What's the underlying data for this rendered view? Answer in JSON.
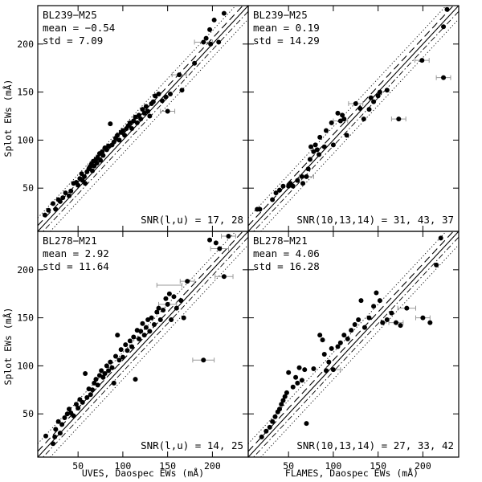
{
  "figure": {
    "xlabel_left": "UVES, Daospec EWs (mÅ)",
    "xlabel_right": "FLAMES, Daospec EWs (mÅ)",
    "ylabel": "Splot EWs (mÅ)"
  },
  "chart_data": [
    {
      "type": "scatter",
      "title": "BL239−M25",
      "mean_label": "mean = −0.54",
      "std_label": "std = 7.09",
      "snr_label": "SNR(l,u) = 17, 28",
      "xlim": [
        5,
        240
      ],
      "ylim": [
        5,
        240
      ],
      "xticks": [
        50,
        100,
        150,
        200
      ],
      "yticks": [
        50,
        100,
        150,
        200
      ],
      "points": [
        [
          13,
          22
        ],
        [
          17,
          27
        ],
        [
          22,
          34
        ],
        [
          25,
          28
        ],
        [
          28,
          38
        ],
        [
          30,
          36
        ],
        [
          33,
          40
        ],
        [
          36,
          45
        ],
        [
          40,
          42
        ],
        [
          42,
          47
        ],
        [
          45,
          55
        ],
        [
          48,
          56
        ],
        [
          50,
          53
        ],
        [
          52,
          60
        ],
        [
          54,
          65
        ],
        [
          55,
          58
        ],
        [
          57,
          62
        ],
        [
          58,
          55
        ],
        [
          60,
          67
        ],
        [
          62,
          70
        ],
        [
          63,
          72
        ],
        [
          65,
          75
        ],
        [
          66,
          68
        ],
        [
          67,
          78
        ],
        [
          68,
          73
        ],
        [
          70,
          80
        ],
        [
          71,
          76
        ],
        [
          72,
          82
        ],
        [
          74,
          86
        ],
        [
          75,
          79
        ],
        [
          77,
          88
        ],
        [
          78,
          84
        ],
        [
          80,
          92
        ],
        [
          82,
          90
        ],
        [
          84,
          94
        ],
        [
          86,
          117
        ],
        [
          88,
          95
        ],
        [
          90,
          98
        ],
        [
          92,
          102
        ],
        [
          94,
          105
        ],
        [
          96,
          100
        ],
        [
          98,
          108
        ],
        [
          100,
          110
        ],
        [
          102,
          105
        ],
        [
          104,
          112
        ],
        [
          106,
          115
        ],
        [
          108,
          118
        ],
        [
          110,
          112
        ],
        [
          112,
          120
        ],
        [
          114,
          124
        ],
        [
          116,
          118
        ],
        [
          118,
          126
        ],
        [
          120,
          122
        ],
        [
          122,
          132
        ],
        [
          124,
          128
        ],
        [
          126,
          135
        ],
        [
          128,
          130
        ],
        [
          130,
          125
        ],
        [
          132,
          138
        ],
        [
          134,
          140
        ],
        [
          136,
          146
        ],
        [
          140,
          148
        ],
        [
          144,
          141
        ],
        [
          148,
          145
        ],
        [
          150,
          130
        ],
        [
          153,
          148
        ],
        [
          163,
          168
        ],
        [
          166,
          152
        ],
        [
          180,
          180
        ],
        [
          190,
          202
        ],
        [
          193,
          206
        ],
        [
          197,
          215
        ],
        [
          198,
          200
        ],
        [
          202,
          225
        ],
        [
          207,
          202
        ],
        [
          213,
          232
        ]
      ],
      "errorbars": [
        [
          150,
          130,
          8
        ],
        [
          163,
          168,
          8
        ],
        [
          190,
          202,
          10
        ]
      ]
    },
    {
      "type": "scatter",
      "title": "BL239−M25",
      "mean_label": "mean = 0.19",
      "std_label": "std = 14.29",
      "snr_label": "SNR(10,13,14) = 31, 43, 37",
      "xlim": [
        5,
        240
      ],
      "ylim": [
        5,
        240
      ],
      "xticks": [
        50,
        100,
        150,
        200
      ],
      "yticks": [
        50,
        100,
        150,
        200
      ],
      "points": [
        [
          15,
          28
        ],
        [
          18,
          28
        ],
        [
          32,
          38
        ],
        [
          36,
          45
        ],
        [
          40,
          48
        ],
        [
          44,
          52
        ],
        [
          50,
          52
        ],
        [
          52,
          55
        ],
        [
          55,
          52
        ],
        [
          60,
          58
        ],
        [
          65,
          62
        ],
        [
          66,
          55
        ],
        [
          70,
          62
        ],
        [
          72,
          70
        ],
        [
          74,
          80
        ],
        [
          75,
          93
        ],
        [
          78,
          88
        ],
        [
          80,
          95
        ],
        [
          82,
          90
        ],
        [
          84,
          85
        ],
        [
          85,
          103
        ],
        [
          90,
          93
        ],
        [
          92,
          110
        ],
        [
          98,
          118
        ],
        [
          100,
          95
        ],
        [
          105,
          128
        ],
        [
          108,
          120
        ],
        [
          110,
          126
        ],
        [
          112,
          122
        ],
        [
          115,
          105
        ],
        [
          125,
          138
        ],
        [
          130,
          133
        ],
        [
          134,
          122
        ],
        [
          140,
          132
        ],
        [
          142,
          144
        ],
        [
          145,
          140
        ],
        [
          150,
          146
        ],
        [
          152,
          150
        ],
        [
          160,
          152
        ],
        [
          173,
          122
        ],
        [
          199,
          183
        ],
        [
          223,
          218
        ],
        [
          227,
          236
        ],
        [
          223,
          165
        ]
      ],
      "errorbars": [
        [
          70,
          62,
          8
        ],
        [
          108,
          120,
          8
        ],
        [
          125,
          138,
          8
        ],
        [
          173,
          122,
          8
        ],
        [
          199,
          183,
          8
        ],
        [
          223,
          165,
          8
        ]
      ]
    },
    {
      "type": "scatter",
      "title": "BL278−M21",
      "mean_label": "mean = 2.92",
      "std_label": "std = 11.64",
      "snr_label": "SNR(l,u) = 14, 25",
      "xlim": [
        5,
        240
      ],
      "ylim": [
        5,
        240
      ],
      "xticks": [
        50,
        100,
        150,
        200
      ],
      "yticks": [
        50,
        100,
        150,
        200
      ],
      "points": [
        [
          14,
          27
        ],
        [
          22,
          19
        ],
        [
          24,
          26
        ],
        [
          25,
          34
        ],
        [
          28,
          42
        ],
        [
          30,
          30
        ],
        [
          32,
          39
        ],
        [
          35,
          46
        ],
        [
          38,
          50
        ],
        [
          40,
          55
        ],
        [
          42,
          51
        ],
        [
          45,
          48
        ],
        [
          48,
          60
        ],
        [
          50,
          56
        ],
        [
          52,
          65
        ],
        [
          55,
          62
        ],
        [
          58,
          92
        ],
        [
          60,
          67
        ],
        [
          62,
          76
        ],
        [
          64,
          70
        ],
        [
          66,
          75
        ],
        [
          68,
          82
        ],
        [
          70,
          86
        ],
        [
          72,
          80
        ],
        [
          74,
          90
        ],
        [
          76,
          95
        ],
        [
          78,
          88
        ],
        [
          80,
          92
        ],
        [
          82,
          100
        ],
        [
          84,
          95
        ],
        [
          86,
          104
        ],
        [
          88,
          98
        ],
        [
          90,
          82
        ],
        [
          92,
          110
        ],
        [
          94,
          132
        ],
        [
          96,
          106
        ],
        [
          98,
          117
        ],
        [
          100,
          109
        ],
        [
          103,
          122
        ],
        [
          105,
          116
        ],
        [
          108,
          126
        ],
        [
          110,
          120
        ],
        [
          112,
          130
        ],
        [
          114,
          86
        ],
        [
          116,
          137
        ],
        [
          118,
          128
        ],
        [
          120,
          136
        ],
        [
          122,
          144
        ],
        [
          124,
          132
        ],
        [
          126,
          140
        ],
        [
          128,
          148
        ],
        [
          130,
          136
        ],
        [
          132,
          150
        ],
        [
          135,
          143
        ],
        [
          138,
          156
        ],
        [
          140,
          160
        ],
        [
          142,
          148
        ],
        [
          145,
          158
        ],
        [
          148,
          170
        ],
        [
          150,
          164
        ],
        [
          152,
          175
        ],
        [
          154,
          148
        ],
        [
          157,
          172
        ],
        [
          160,
          160
        ],
        [
          165,
          168
        ],
        [
          168,
          150
        ],
        [
          172,
          188
        ],
        [
          190,
          106
        ],
        [
          197,
          231
        ],
        [
          204,
          228
        ],
        [
          208,
          222
        ],
        [
          213,
          193
        ],
        [
          218,
          235
        ]
      ],
      "errorbars": [
        [
          152,
          184,
          14
        ],
        [
          150,
          164,
          10
        ],
        [
          190,
          106,
          12
        ],
        [
          208,
          222,
          10
        ],
        [
          218,
          235,
          8
        ],
        [
          213,
          193,
          10
        ],
        [
          172,
          188,
          8
        ]
      ]
    },
    {
      "type": "scatter",
      "title": "BL278−M21",
      "mean_label": "mean = 4.06",
      "std_label": "std = 16.28",
      "snr_label": "SNR(10,13,14) = 27, 33, 42",
      "xlim": [
        5,
        240
      ],
      "ylim": [
        5,
        240
      ],
      "xticks": [
        50,
        100,
        150,
        200
      ],
      "yticks": [
        50,
        100,
        150,
        200
      ],
      "points": [
        [
          20,
          26
        ],
        [
          25,
          32
        ],
        [
          29,
          36
        ],
        [
          32,
          42
        ],
        [
          35,
          47
        ],
        [
          38,
          52
        ],
        [
          40,
          55
        ],
        [
          42,
          60
        ],
        [
          44,
          64
        ],
        [
          46,
          68
        ],
        [
          48,
          72
        ],
        [
          50,
          93
        ],
        [
          55,
          78
        ],
        [
          58,
          88
        ],
        [
          60,
          82
        ],
        [
          62,
          98
        ],
        [
          65,
          85
        ],
        [
          68,
          96
        ],
        [
          70,
          40
        ],
        [
          78,
          97
        ],
        [
          85,
          132
        ],
        [
          88,
          127
        ],
        [
          90,
          112
        ],
        [
          92,
          95
        ],
        [
          95,
          104
        ],
        [
          98,
          118
        ],
        [
          100,
          96
        ],
        [
          105,
          120
        ],
        [
          108,
          124
        ],
        [
          112,
          132
        ],
        [
          116,
          128
        ],
        [
          120,
          137
        ],
        [
          124,
          143
        ],
        [
          128,
          148
        ],
        [
          131,
          168
        ],
        [
          135,
          140
        ],
        [
          140,
          150
        ],
        [
          145,
          162
        ],
        [
          148,
          176
        ],
        [
          152,
          168
        ],
        [
          155,
          145
        ],
        [
          160,
          148
        ],
        [
          165,
          155
        ],
        [
          170,
          145
        ],
        [
          175,
          142
        ],
        [
          182,
          160
        ],
        [
          200,
          150
        ],
        [
          208,
          145
        ],
        [
          215,
          205
        ],
        [
          220,
          233
        ]
      ],
      "errorbars": [
        [
          100,
          96,
          8
        ],
        [
          170,
          145,
          8
        ],
        [
          200,
          150,
          8
        ],
        [
          182,
          160,
          10
        ]
      ]
    }
  ]
}
